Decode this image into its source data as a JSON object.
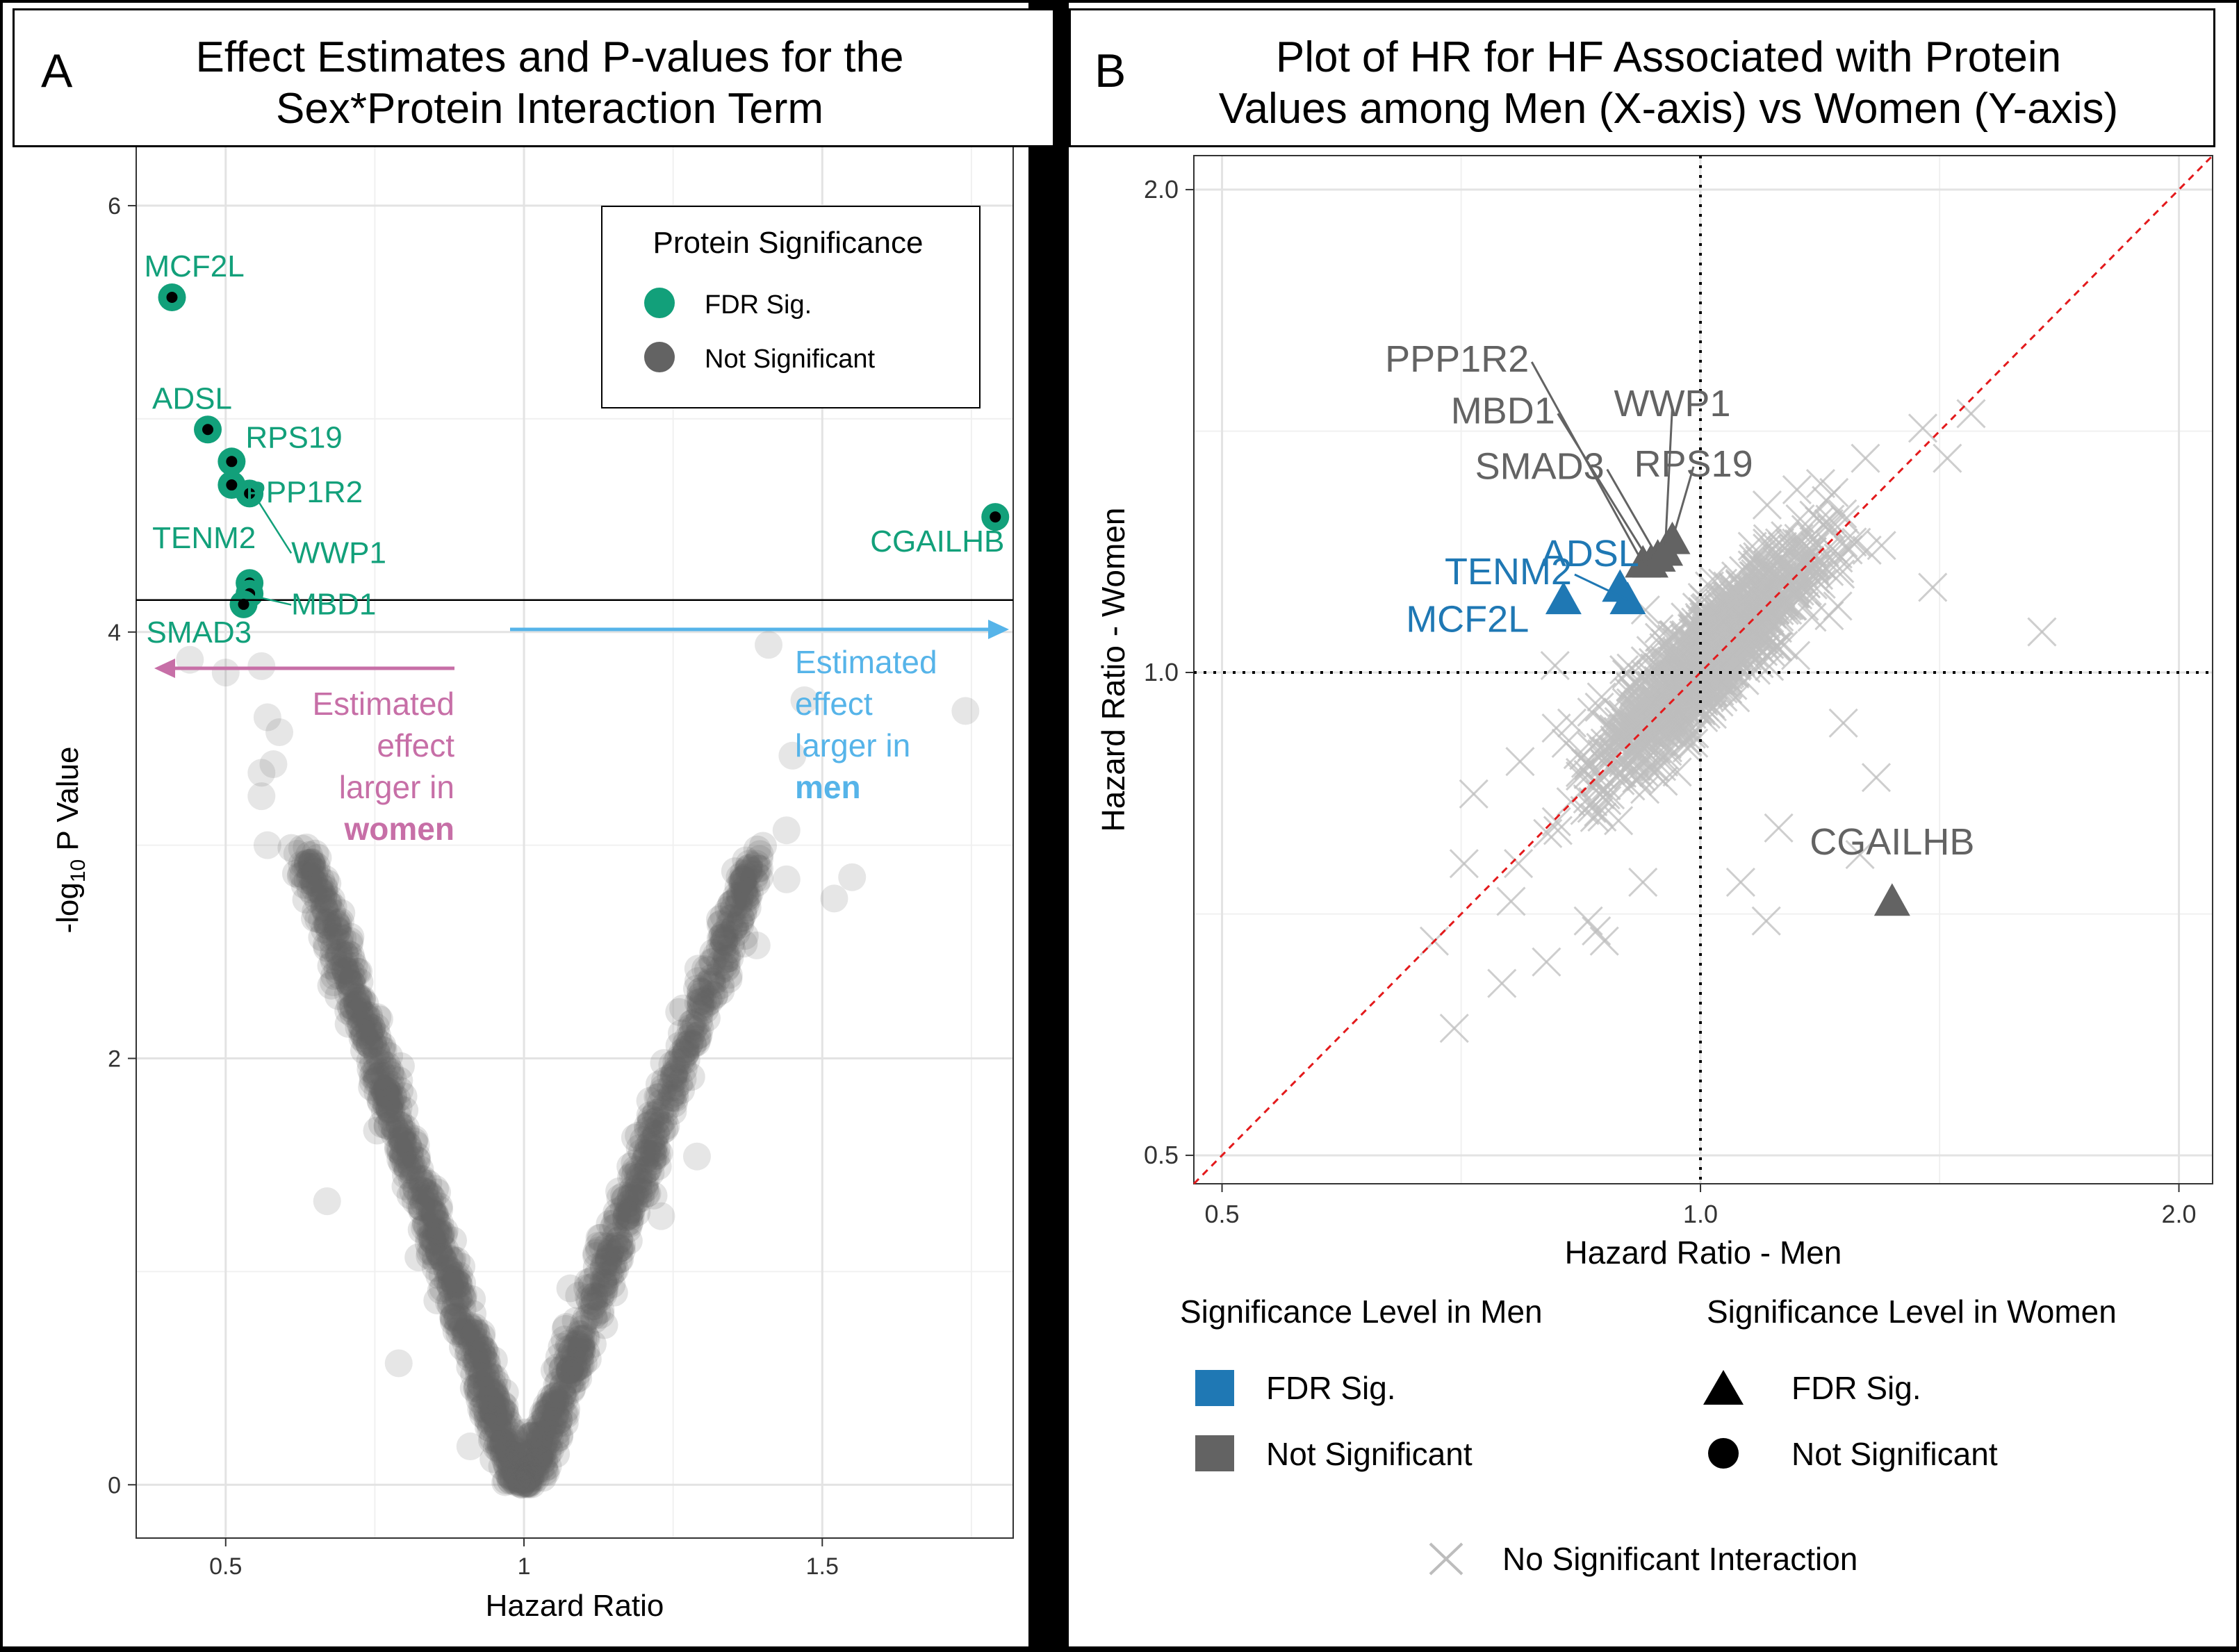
{
  "panel_a": {
    "letter": "A",
    "title_line1": "Effect Estimates and P-values for the",
    "title_line2": "Sex*Protein Interaction Term",
    "arrow_women_label": [
      "Estimated",
      "effect",
      "larger in"
    ],
    "arrow_women_bold": "women",
    "arrow_men_label": [
      "Estimated",
      "effect",
      "larger in"
    ],
    "arrow_men_bold": "men"
  },
  "panel_b": {
    "letter": "B",
    "title_line1": "Plot of HR for HF Associated with Protein",
    "title_line2": "Values among Men (X-axis) vs Women (Y-axis)",
    "legend_men_title": "Significance Level in Men",
    "legend_women_title": "Significance Level in Women",
    "legend_men_items": [
      "FDR Sig.",
      "Not Significant"
    ],
    "legend_women_items": [
      "FDR Sig.",
      "Not Significant"
    ],
    "legend_x_label": "No Significant Interaction"
  },
  "colors": {
    "green": "#12a07a",
    "blue": "#1f78b4",
    "gray": "#636363",
    "light_gray": "#bdbdbd",
    "pink": "#c76fa7",
    "light_blue": "#56b4e9",
    "red": "#e31a1c"
  },
  "chart_data": [
    {
      "type": "scatter",
      "title": "Effect Estimates and P-values for the Sex*Protein Interaction Term",
      "xlabel": "Hazard Ratio",
      "ylabel": "-log10 P Value",
      "xlim": [
        0.35,
        1.82
      ],
      "ylim": [
        -0.25,
        6.3
      ],
      "x_ticks": [
        0.5,
        1,
        1.5
      ],
      "x_tick_labels": [
        "0.5",
        "1",
        "1.5"
      ],
      "y_ticks": [
        0,
        2,
        4,
        6
      ],
      "y_tick_labels": [
        "0",
        "2",
        "4",
        "6"
      ],
      "threshold_y": 4.15,
      "legend": {
        "title": "Protein Significance",
        "position": "top-right",
        "items": [
          "FDR Sig.",
          "Not Significant"
        ]
      },
      "significant": [
        {
          "label": "MCF2L",
          "hr": 0.41,
          "logp": 5.57
        },
        {
          "label": "ADSL",
          "hr": 0.47,
          "logp": 4.95
        },
        {
          "label": "RPS19",
          "hr": 0.51,
          "logp": 4.8
        },
        {
          "label": "PPP1R2",
          "hr": 0.51,
          "logp": 4.69
        },
        {
          "label": "WWP1",
          "hr": 0.54,
          "logp": 4.65
        },
        {
          "label": "TENM2",
          "hr": 0.54,
          "logp": 4.23
        },
        {
          "label": "MBD1",
          "hr": 0.54,
          "logp": 4.18
        },
        {
          "label": "SMAD3",
          "hr": 0.53,
          "logp": 4.13
        },
        {
          "label": "CGAILHB",
          "hr": 1.79,
          "logp": 4.54
        }
      ],
      "scattered_not_significant": [
        [
          0.44,
          3.87
        ],
        [
          0.5,
          3.81
        ],
        [
          0.56,
          3.84
        ],
        [
          0.57,
          3.6
        ],
        [
          0.58,
          3.38
        ],
        [
          0.56,
          3.34
        ],
        [
          0.56,
          3.23
        ],
        [
          0.57,
          3.0
        ],
        [
          0.62,
          2.96
        ],
        [
          0.59,
          3.53
        ],
        [
          1.41,
          3.94
        ],
        [
          1.47,
          3.68
        ],
        [
          1.45,
          3.42
        ],
        [
          1.44,
          3.07
        ],
        [
          1.44,
          2.84
        ],
        [
          1.55,
          2.85
        ],
        [
          1.52,
          2.75
        ],
        [
          1.74,
          3.63
        ],
        [
          1.34,
          2.43
        ],
        [
          1.39,
          2.53
        ],
        [
          1.29,
          1.54
        ],
        [
          1.23,
          1.26
        ],
        [
          0.91,
          0.18
        ],
        [
          0.79,
          0.57
        ],
        [
          0.67,
          1.33
        ]
      ]
    },
    {
      "type": "scatter",
      "title": "Plot of HR for HF Associated with Protein Values among Men (X-axis) vs Women (Y-axis)",
      "xlabel": "Hazard Ratio - Men",
      "ylabel": "Hazard Ratio - Women",
      "x_scale": "log",
      "y_scale": "log",
      "xlim": [
        0.48,
        2.1
      ],
      "ylim": [
        0.48,
        2.1
      ],
      "x_ticks": [
        0.5,
        1.0,
        2.0
      ],
      "x_tick_labels": [
        "0.5",
        "1.0",
        "2.0"
      ],
      "y_ticks": [
        0.5,
        1.0,
        2.0
      ],
      "y_tick_labels": [
        "0.5",
        "1.0",
        "2.0"
      ],
      "reference_lines": {
        "vertical": 1.0,
        "horizontal": 1.0,
        "diagonal": "y=x"
      },
      "proteins": [
        {
          "label": "MCF2L",
          "hr_men": 0.82,
          "hr_women": 1.11,
          "men_sig": "FDR Sig.",
          "women_sig": "FDR Sig."
        },
        {
          "label": "TENM2",
          "hr_men": 0.9,
          "hr_women": 1.11,
          "men_sig": "FDR Sig.",
          "women_sig": "FDR Sig."
        },
        {
          "label": "ADSL",
          "hr_men": 0.89,
          "hr_women": 1.13,
          "men_sig": "FDR Sig.",
          "women_sig": "FDR Sig."
        },
        {
          "label": "PPP1R2",
          "hr_men": 0.92,
          "hr_women": 1.17,
          "men_sig": "Not Significant",
          "women_sig": "FDR Sig."
        },
        {
          "label": "MBD1",
          "hr_men": 0.93,
          "hr_women": 1.17,
          "men_sig": "Not Significant",
          "women_sig": "FDR Sig."
        },
        {
          "label": "SMAD3",
          "hr_men": 0.94,
          "hr_women": 1.18,
          "men_sig": "Not Significant",
          "women_sig": "FDR Sig."
        },
        {
          "label": "WWP1",
          "hr_men": 0.95,
          "hr_women": 1.19,
          "men_sig": "Not Significant",
          "women_sig": "FDR Sig."
        },
        {
          "label": "RPS19",
          "hr_men": 0.96,
          "hr_women": 1.21,
          "men_sig": "Not Significant",
          "women_sig": "FDR Sig."
        },
        {
          "label": "CGAILHB",
          "hr_men": 1.32,
          "hr_women": 0.72,
          "men_sig": "Not Significant",
          "women_sig": "FDR Sig."
        }
      ],
      "no_interaction_outliers": [
        [
          1.38,
          1.42
        ],
        [
          1.27,
          1.36
        ],
        [
          1.48,
          1.45
        ],
        [
          1.43,
          1.36
        ],
        [
          1.64,
          1.06
        ],
        [
          1.29,
          0.86
        ],
        [
          1.23,
          0.93
        ],
        [
          1.2,
          1.28
        ],
        [
          0.68,
          0.68
        ],
        [
          0.7,
          0.6
        ],
        [
          0.76,
          0.72
        ],
        [
          0.75,
          0.64
        ],
        [
          0.8,
          0.66
        ],
        [
          0.85,
          0.7
        ],
        [
          0.87,
          0.68
        ],
        [
          0.72,
          0.84
        ],
        [
          0.77,
          0.88
        ],
        [
          0.71,
          0.76
        ],
        [
          0.81,
          1.01
        ],
        [
          0.86,
          0.69
        ],
        [
          1.4,
          1.13
        ],
        [
          1.12,
          0.8
        ],
        [
          1.06,
          0.74
        ],
        [
          1.3,
          1.2
        ],
        [
          1.15,
          1.3
        ],
        [
          0.83,
          0.93
        ],
        [
          0.92,
          0.74
        ],
        [
          1.1,
          0.7
        ],
        [
          1.22,
          1.1
        ],
        [
          1.26,
          0.77
        ]
      ]
    }
  ]
}
